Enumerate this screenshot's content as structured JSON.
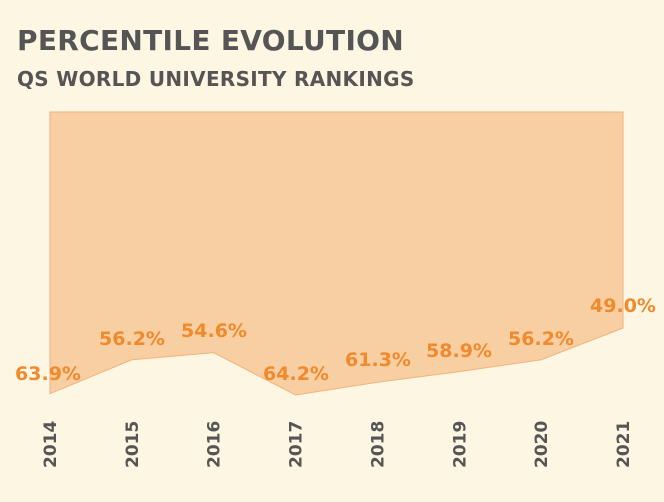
{
  "title": "PERCENTILE EVOLUTION",
  "subtitle": "QS WORLD UNIVERSITY RANKINGS",
  "colors": {
    "background": "#fdf6e3",
    "area_fill": "#f8cfa3",
    "area_stroke": "#f3b27a",
    "label": "#f08a2c",
    "text": "#555555"
  },
  "chart_data": {
    "type": "area",
    "categories": [
      "2014",
      "2015",
      "2016",
      "2017",
      "2018",
      "2019",
      "2020",
      "2021"
    ],
    "values": [
      63.9,
      56.2,
      54.6,
      64.2,
      61.3,
      58.9,
      56.2,
      49.0
    ],
    "value_labels": [
      "63.9%",
      "56.2%",
      "54.6%",
      "64.2%",
      "61.3%",
      "58.9%",
      "56.2%",
      "49.0%"
    ],
    "y_reversed": true,
    "ylim": [
      64.2,
      0
    ],
    "grid": false,
    "legend": "none"
  }
}
